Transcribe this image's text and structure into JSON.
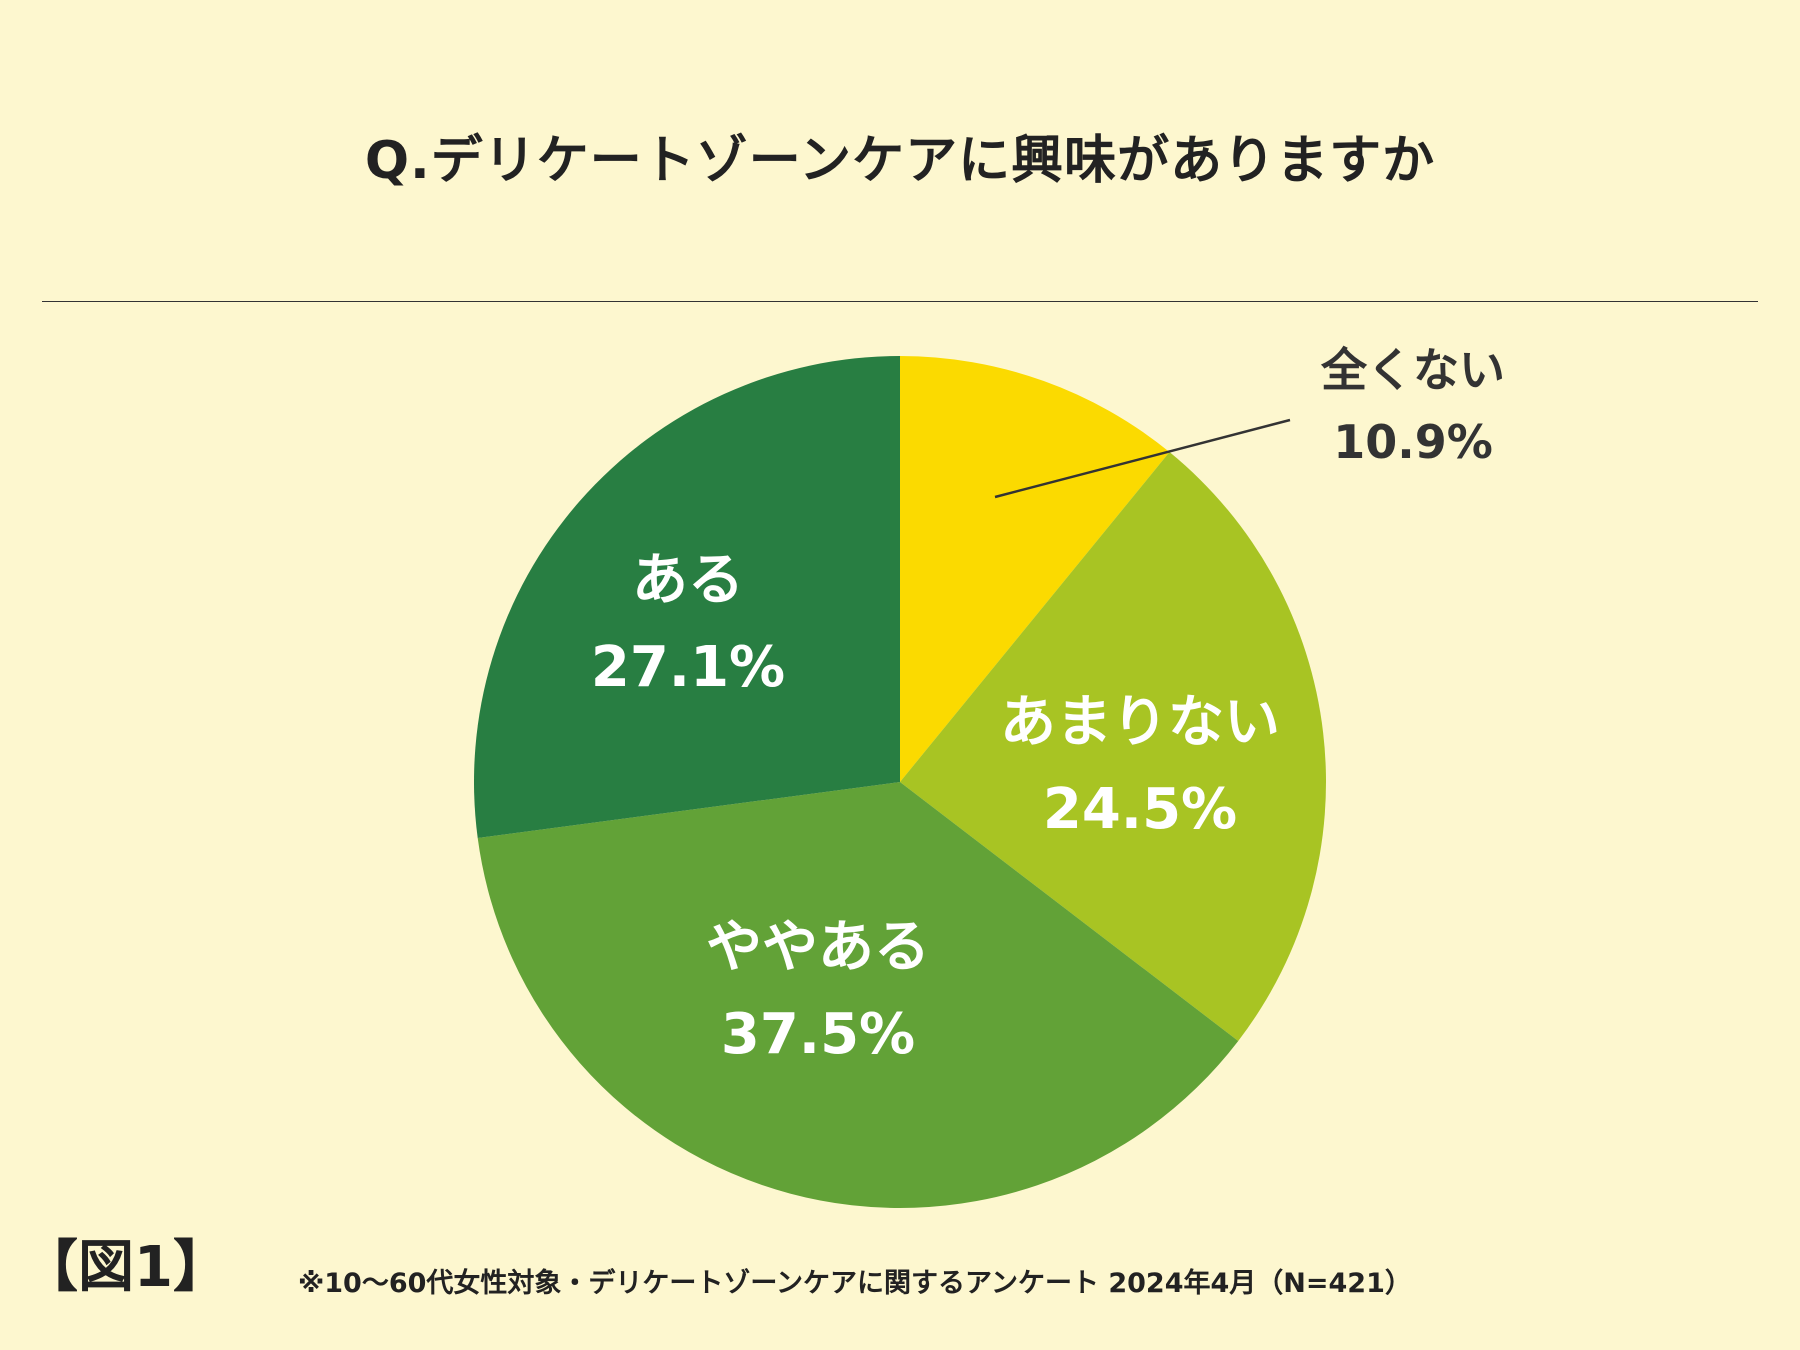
{
  "title": "Q.デリケートゾーンケアに興味がありますか",
  "figure_label": "【図1】",
  "footnote": "※10〜60代女性対象・デリケートゾーンケアに関するアンケート 2024年4月（N=421）",
  "chart_data": {
    "type": "pie",
    "title": "Q.デリケートゾーンケアに興味がありますか",
    "slices": [
      {
        "label": "全くない",
        "value": 10.9,
        "display": "10.9%",
        "color": "#fbda00",
        "label_color": "#333333",
        "callout": true
      },
      {
        "label": "あまりない",
        "value": 24.5,
        "display": "24.5%",
        "color": "#a8c423",
        "label_color": "#ffffff",
        "callout": false
      },
      {
        "label": "ややある",
        "value": 37.5,
        "display": "37.5%",
        "color": "#62a237",
        "label_color": "#ffffff",
        "callout": false
      },
      {
        "label": "ある",
        "value": 27.1,
        "display": "27.1%",
        "color": "#287e42",
        "label_color": "#ffffff",
        "callout": false
      }
    ],
    "start_angle": "top",
    "direction": "clockwise",
    "legend": "none"
  }
}
